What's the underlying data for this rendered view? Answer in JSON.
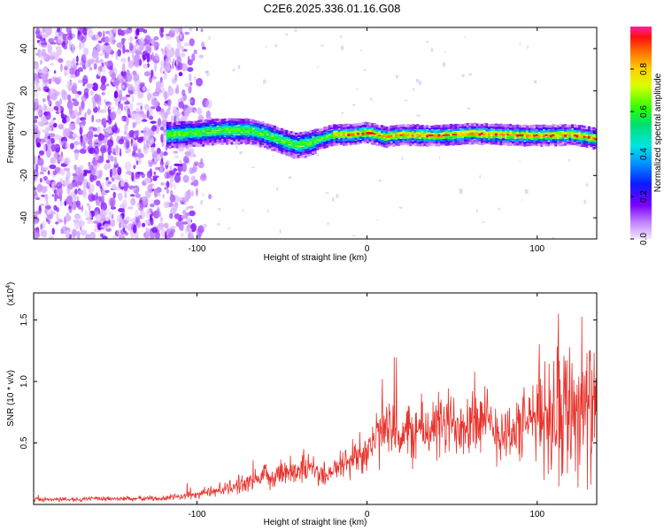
{
  "title": "C2E6.2025.336.01.16.G08",
  "chart_data": [
    {
      "type": "heatmap",
      "xlabel": "Height of straight line (km)",
      "ylabel": "Frequency (Hz)",
      "xlim": [
        -196,
        135
      ],
      "ylim": [
        -50,
        50
      ],
      "x_ticks": [
        -100,
        0,
        100
      ],
      "x_tick_labels": [
        "-100",
        "0",
        "100"
      ],
      "y_ticks": [
        -40,
        -20,
        0,
        20,
        40
      ],
      "y_tick_labels": [
        "-40",
        "-20",
        "0",
        "20",
        "40"
      ],
      "noise_region_x": [
        -196,
        -102
      ],
      "signal_start_x": -118,
      "ridge": {
        "x": [
          -118,
          -100,
          -85,
          -70,
          -60,
          -50,
          -42,
          -35,
          -28,
          -20,
          -10,
          0,
          10,
          20,
          40,
          60,
          80,
          100,
          120,
          135
        ],
        "y": [
          0,
          1,
          2,
          2,
          0,
          -3,
          -5,
          -4,
          -2,
          0,
          0,
          1,
          -1,
          0,
          -0.5,
          0.5,
          0,
          -0.5,
          0,
          -2
        ]
      },
      "colorbar": {
        "label": "Normalized spectral amplitude",
        "range": [
          0,
          1
        ],
        "ticks": [
          0.0,
          0.2,
          0.4,
          0.6,
          0.8
        ],
        "tick_labels": [
          "0.0",
          "0.2",
          "0.4",
          "0.6",
          "0.8"
        ]
      }
    },
    {
      "type": "line",
      "xlabel": "Height of straight line (km)",
      "ylabel": "SNR (10 * v/v)",
      "y_multiplier_label": "(x10",
      "y_multiplier_exp": "4",
      "y_multiplier_close": ")",
      "xlim": [
        -196,
        135
      ],
      "ylim": [
        0,
        1.72
      ],
      "x_ticks": [
        -100,
        0,
        100
      ],
      "x_tick_labels": [
        "-100",
        "0",
        "100"
      ],
      "y_ticks": [
        0.5,
        1.0,
        1.5
      ],
      "y_tick_labels": [
        "0.5",
        "1.0",
        "1.5"
      ],
      "color": "#e8322b",
      "envelope": {
        "x": [
          -196,
          -120,
          -100,
          -80,
          -60,
          -45,
          -35,
          -25,
          -15,
          -5,
          5,
          10,
          20,
          30,
          40,
          50,
          60,
          70,
          80,
          90,
          100,
          110,
          120,
          128,
          135
        ],
        "y": [
          0.04,
          0.05,
          0.08,
          0.14,
          0.22,
          0.28,
          0.3,
          0.24,
          0.32,
          0.4,
          0.52,
          0.6,
          0.56,
          0.6,
          0.62,
          0.66,
          0.7,
          0.66,
          0.58,
          0.62,
          0.72,
          0.78,
          0.82,
          0.78,
          0.75
        ]
      }
    }
  ]
}
